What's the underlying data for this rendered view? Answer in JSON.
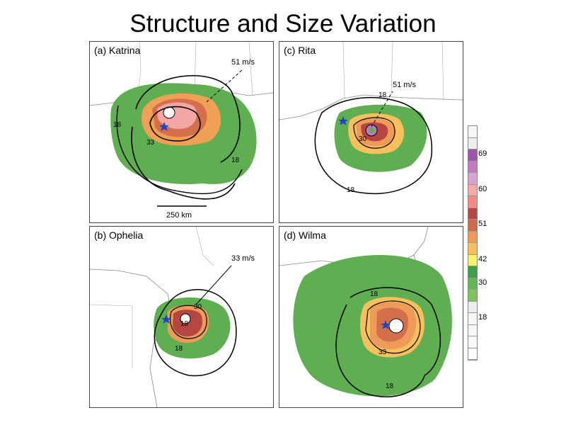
{
  "title": "Structure and Size Variation",
  "panels": [
    {
      "label": "(a) Katrina",
      "contours": [
        "51 m/s",
        "18",
        "33",
        "18"
      ],
      "scalebar": "250 km"
    },
    {
      "label": "(c) Rita",
      "contours": [
        "51 m/s",
        "18",
        "30",
        "18"
      ]
    },
    {
      "label": "(b) Ophelia",
      "contours": [
        "33 m/s",
        "30",
        "18",
        "18"
      ]
    },
    {
      "label": "(d) Wilma",
      "contours": [
        "18",
        "33",
        "18"
      ]
    }
  ],
  "colorbar": {
    "ticks": [
      "69",
      "60",
      "51",
      "42",
      "30",
      "18"
    ],
    "colors": [
      "#f6f6f6",
      "#eeeeee",
      "#9e55a5",
      "#c07ac4",
      "#d7a3cf",
      "#f5aaa8",
      "#f38b85",
      "#b54642",
      "#cc6a4d",
      "#ee9a58",
      "#f7c05c",
      "#f8f26e",
      "#3f9f46",
      "#61b758",
      "#7cc45b",
      "#ececec",
      "#f6f6f6",
      "#f6f6f6",
      "#f8f8f8",
      "#ffffff"
    ]
  },
  "legend_colors": {
    "land_outline": "#888888",
    "storm_center": "#2244cc"
  }
}
